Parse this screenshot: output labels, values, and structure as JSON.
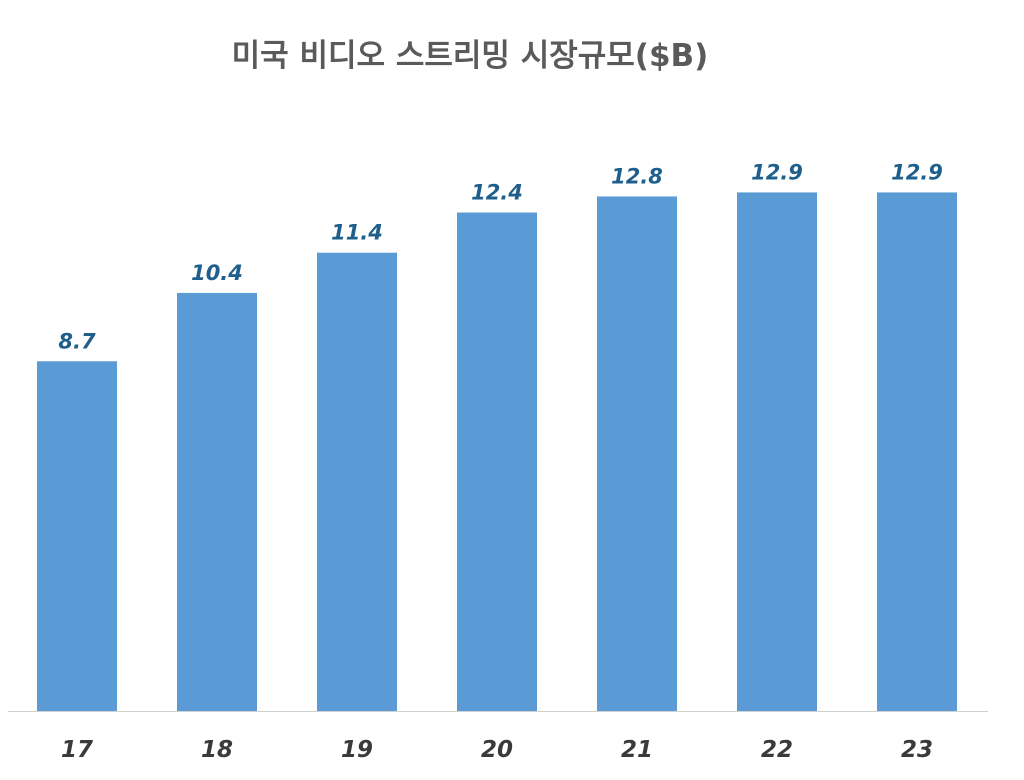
{
  "chart_data": {
    "type": "bar",
    "title": "미국 비디오 스트리밍 시장규모($B)",
    "xlabel": "",
    "ylabel": "",
    "categories": [
      "17",
      "18",
      "19",
      "20",
      "21",
      "22",
      "23"
    ],
    "values": [
      8.7,
      10.4,
      11.4,
      12.4,
      12.8,
      12.9,
      12.9
    ],
    "data_labels": [
      "8.7",
      "10.4",
      "11.4",
      "12.4",
      "12.8",
      "12.9",
      "12.9"
    ],
    "ylim": [
      0,
      14.5
    ],
    "grid": false,
    "legend": "none"
  },
  "colors": {
    "bar": "#5b9bd5",
    "data_label": "#1f5f8b",
    "axis_line": "#d0d0d0",
    "tick_label": "#3a3a3a",
    "title": "#5a5a5a"
  }
}
